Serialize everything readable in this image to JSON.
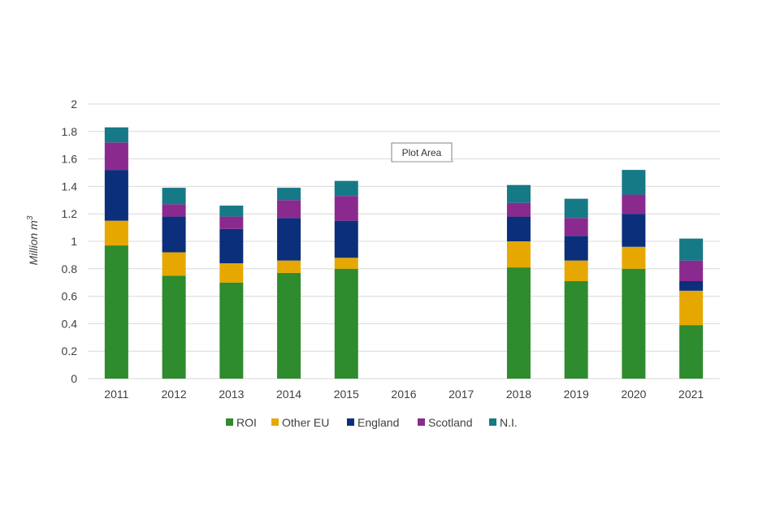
{
  "chart_data": {
    "type": "bar",
    "stacked": true,
    "title": "",
    "xlabel": "",
    "ylabel": "Million m",
    "ylabel_superscript": "3",
    "ylim": [
      0,
      2
    ],
    "yticks": [
      0,
      0.2,
      0.4,
      0.6,
      0.8,
      1,
      1.2,
      1.4,
      1.6,
      1.8,
      2
    ],
    "ytick_labels": [
      "0",
      "0.2",
      "0.4",
      "0.6",
      "0.8",
      "1",
      "1.2",
      "1.4",
      "1.6",
      "1.8",
      "2"
    ],
    "grid": true,
    "legend_position": "bottom",
    "categories": [
      "2011",
      "2012",
      "2013",
      "2014",
      "2015",
      "2016",
      "2017",
      "2018",
      "2019",
      "2020",
      "2021"
    ],
    "series": [
      {
        "name": "ROI",
        "color": "#2e8b2e",
        "values": [
          0.97,
          0.75,
          0.7,
          0.77,
          0.8,
          null,
          null,
          0.81,
          0.71,
          0.8,
          0.39
        ]
      },
      {
        "name": "Other EU",
        "color": "#e6a800",
        "values": [
          0.18,
          0.17,
          0.14,
          0.09,
          0.08,
          null,
          null,
          0.19,
          0.15,
          0.16,
          0.25
        ]
      },
      {
        "name": "England",
        "color": "#0b2f7a",
        "values": [
          0.37,
          0.26,
          0.25,
          0.31,
          0.27,
          null,
          null,
          0.18,
          0.18,
          0.24,
          0.07
        ]
      },
      {
        "name": "Scotland",
        "color": "#8b2a8e",
        "values": [
          0.2,
          0.09,
          0.09,
          0.13,
          0.18,
          null,
          null,
          0.1,
          0.13,
          0.14,
          0.15
        ]
      },
      {
        "name": "N.I.",
        "color": "#157a85",
        "values": [
          0.11,
          0.12,
          0.08,
          0.09,
          0.11,
          null,
          null,
          0.13,
          0.14,
          0.18,
          0.16
        ]
      }
    ],
    "annotation": "Plot Area"
  }
}
